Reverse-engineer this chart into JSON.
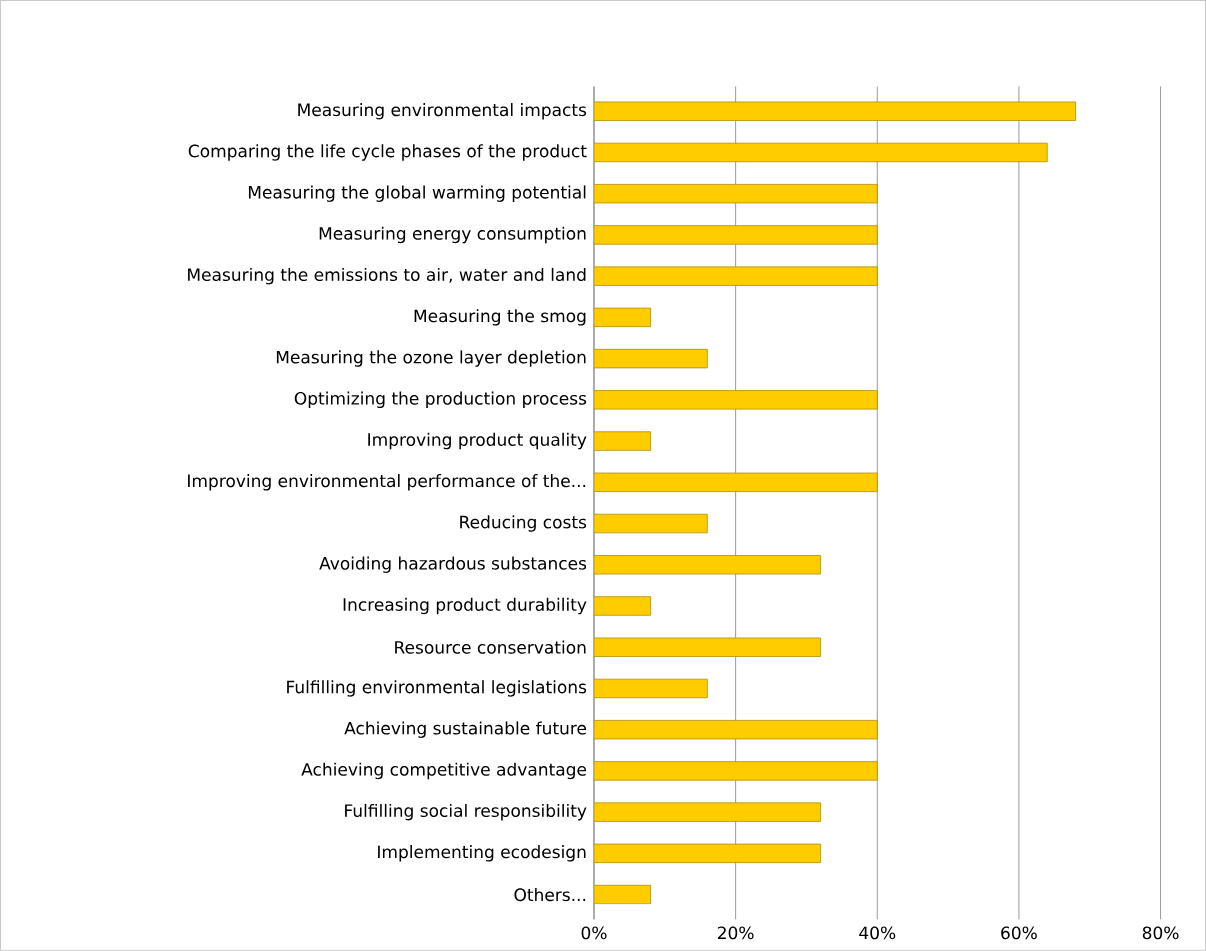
{
  "chart_data": {
    "type": "bar",
    "orientation": "horizontal",
    "categories": [
      "Measuring environmental impacts",
      "Comparing the life cycle phases of the product",
      "Measuring the global warming potential",
      "Measuring energy consumption",
      "Measuring the emissions to air, water and land",
      "Measuring the smog",
      "Measuring the ozone layer depletion",
      "Optimizing the production process",
      "Improving product quality",
      "Improving environmental performance of the...",
      "Reducing costs",
      "Avoiding hazardous substances",
      "Increasing product durability",
      "Resource conservation",
      "Fulfilling environmental legislations",
      "Achieving sustainable future",
      "Achieving competitive advantage",
      "Fulfilling social responsibility",
      "Implementing ecodesign",
      "Others..."
    ],
    "values": [
      68,
      64,
      40,
      40,
      40,
      8,
      16,
      40,
      8,
      40,
      16,
      32,
      8,
      32,
      16,
      40,
      40,
      32,
      32,
      8
    ],
    "color": "#ffcc00",
    "xlim": [
      0,
      80
    ],
    "xticks": [
      {
        "value": 0,
        "label": "0%"
      },
      {
        "value": 20,
        "label": "20%"
      },
      {
        "value": 40,
        "label": "40%"
      },
      {
        "value": 60,
        "label": "60%"
      },
      {
        "value": 80,
        "label": "80%"
      }
    ],
    "grid": "x"
  }
}
